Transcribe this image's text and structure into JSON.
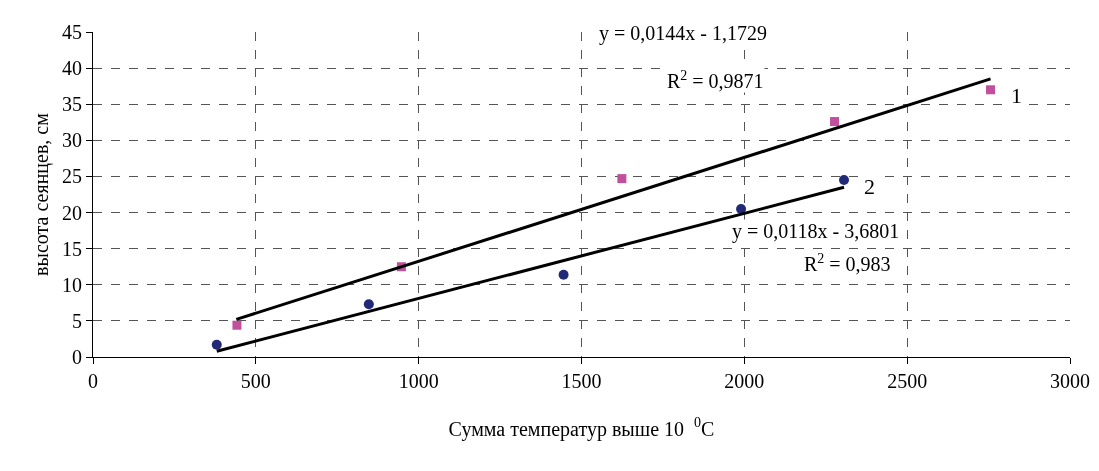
{
  "chart_data": {
    "type": "scatter",
    "xlabel": "Сумма температур выше 10  $^{0}$C",
    "ylabel": "высота сеянцев, см",
    "xlim": [
      0,
      3000
    ],
    "xticks": [
      0,
      500,
      1000,
      1500,
      2000,
      2500,
      3000
    ],
    "ylim": [
      0,
      45
    ],
    "yticks": [
      0,
      5,
      10,
      15,
      20,
      25,
      30,
      35,
      40,
      45
    ],
    "grid": true,
    "legend": false,
    "series": [
      {
        "name": "1",
        "color": "#c0509c",
        "marker": "square",
        "x": [
          442,
          947,
          1624,
          2277,
          2756
        ],
        "values": [
          4.4,
          12.5,
          24.7,
          32.6,
          37.0
        ]
      },
      {
        "name": "2",
        "color": "#222a78",
        "marker": "circle",
        "x": [
          380,
          847,
          1445,
          1990,
          2306
        ],
        "values": [
          1.7,
          7.3,
          11.4,
          20.5,
          24.5
        ]
      },
      {
        "type": "line",
        "color": "#000000",
        "marker": "none",
        "line_style": "solid",
        "x": [
          440,
          2756
        ],
        "values": [
          5.2,
          38.5
        ]
      },
      {
        "type": "line",
        "color": "#000000",
        "marker": "none",
        "line_style": "solid",
        "x": [
          380,
          2306
        ],
        "values": [
          0.8,
          23.5
        ]
      }
    ],
    "annotations": [
      "y = 0,0144x - 1,1729",
      "R$^{2}$ = 0,9871",
      "y = 0,0118x - 3,6801",
      "R$^{2}$ = 0,983"
    ]
  }
}
